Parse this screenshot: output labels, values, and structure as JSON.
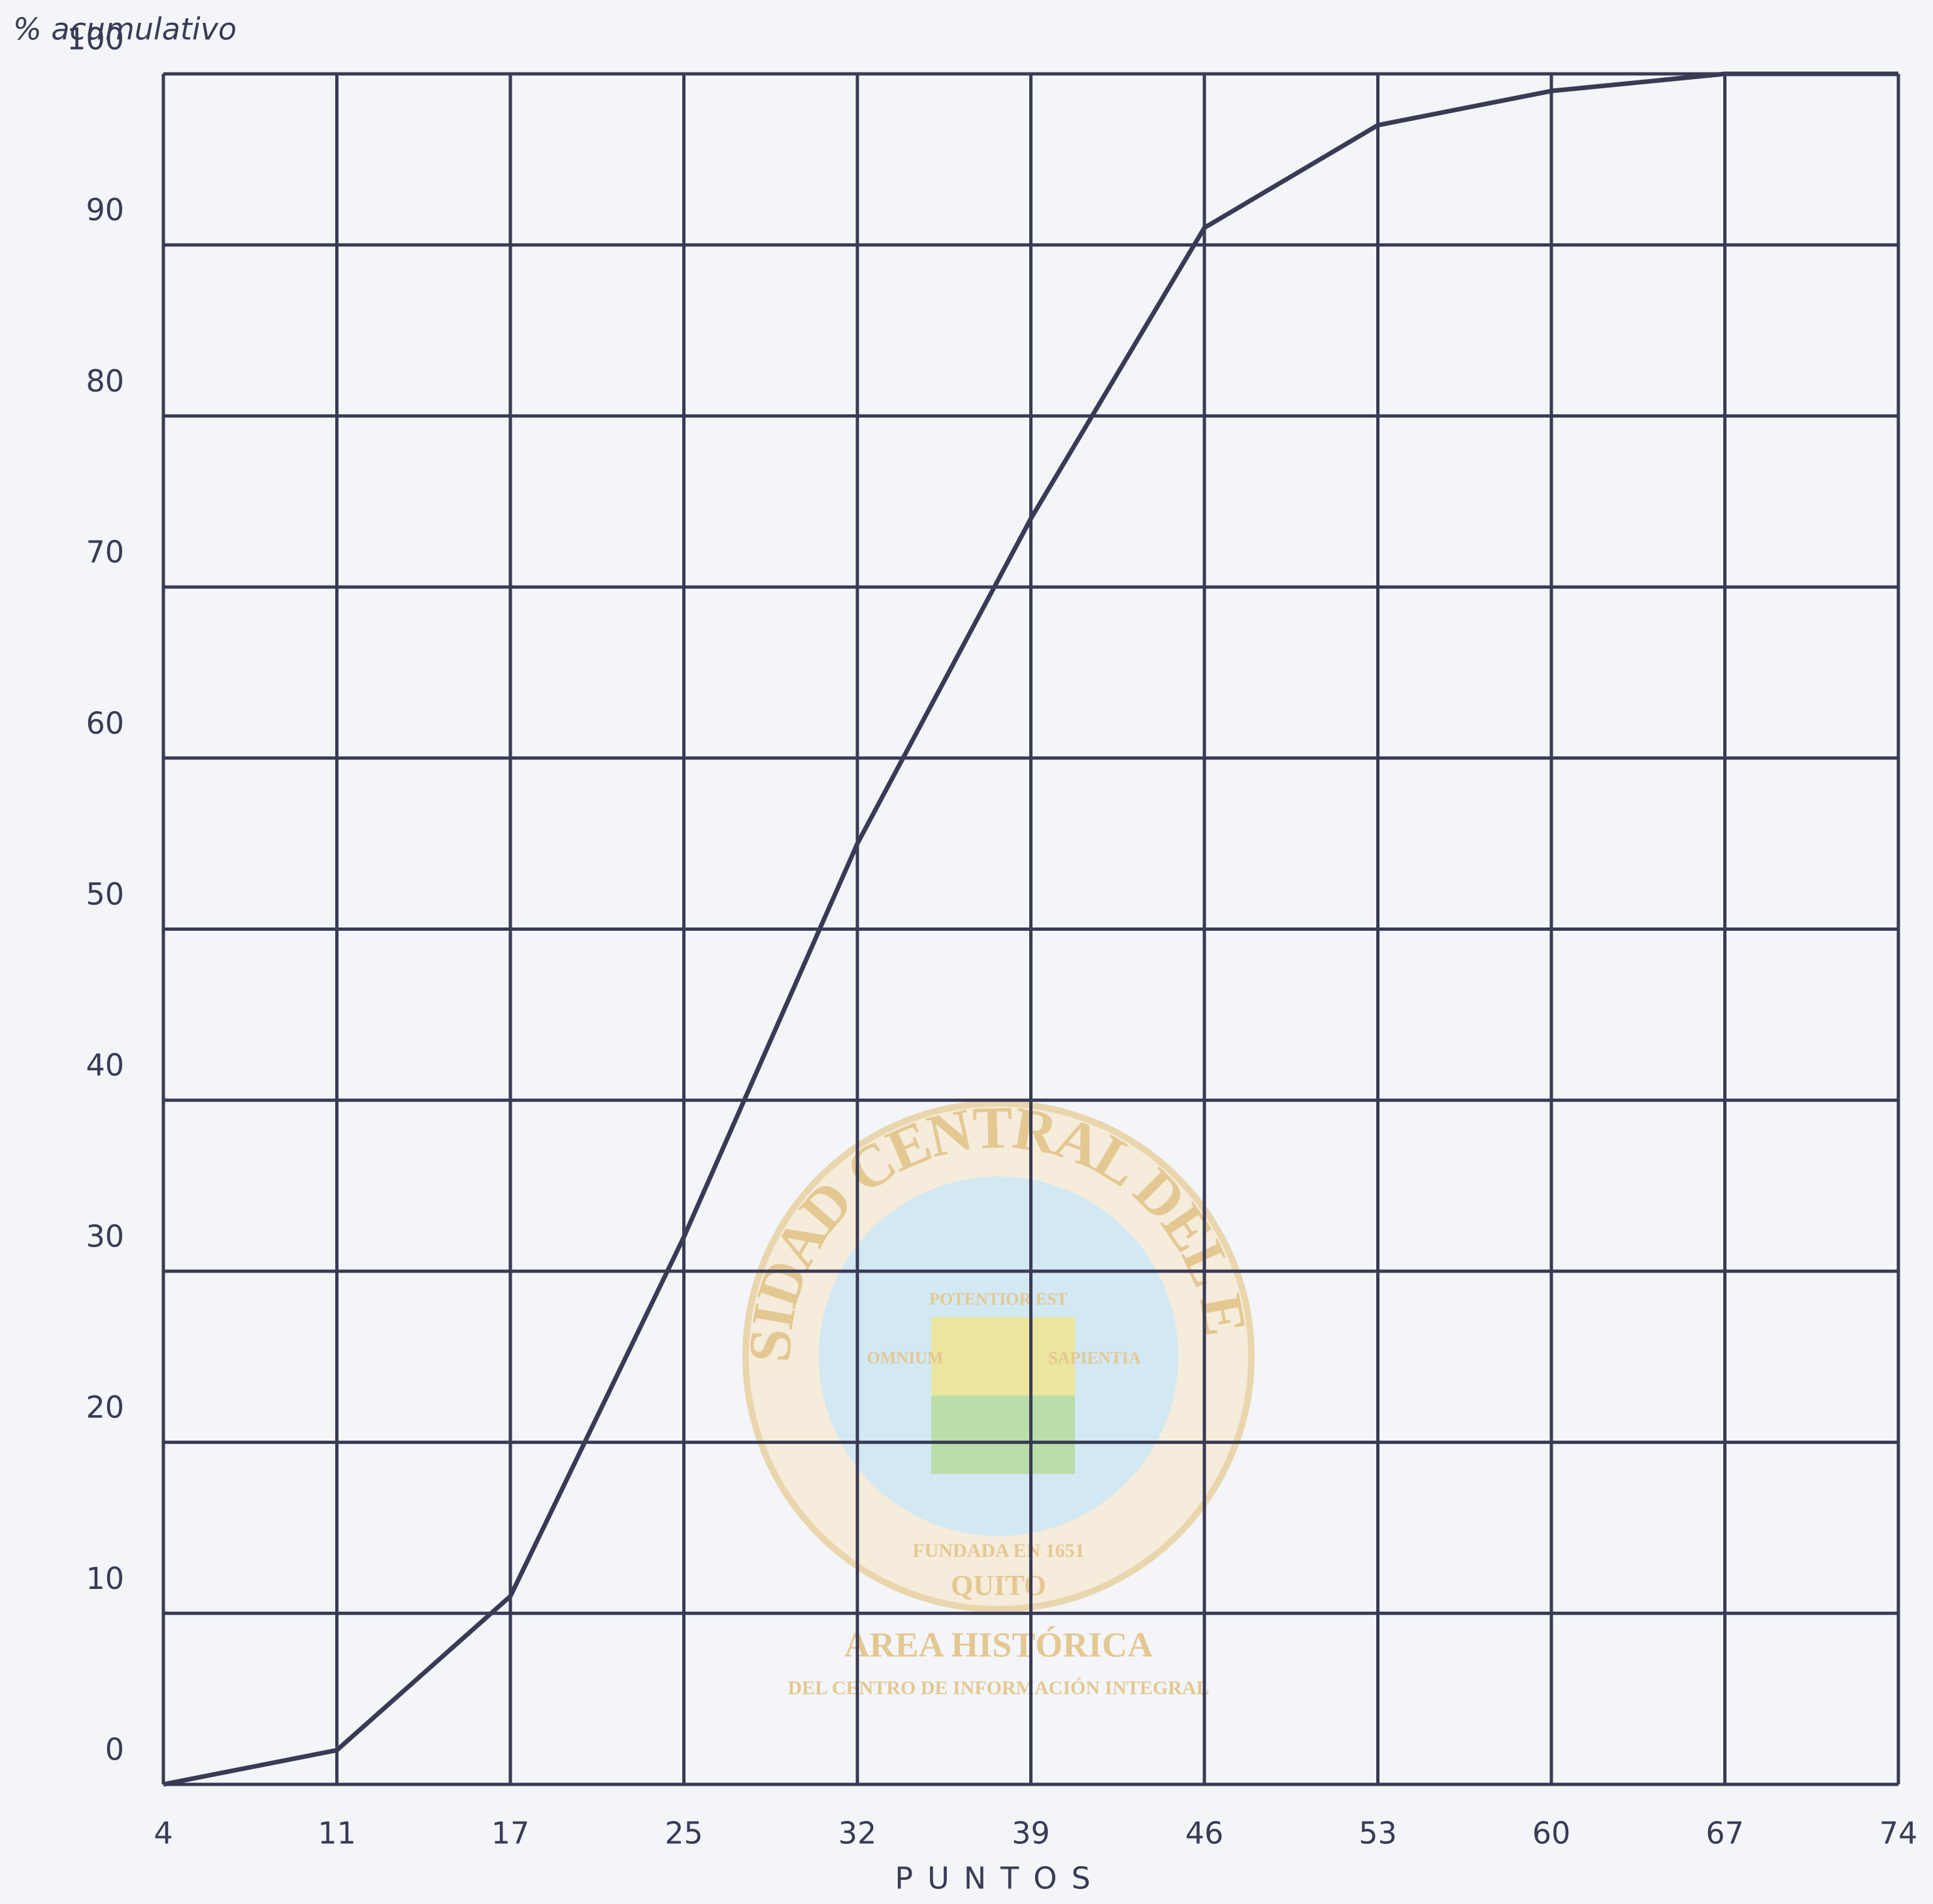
{
  "chart_data": {
    "type": "line",
    "y_label": "% acumulativo",
    "x_label": "PUNTOS",
    "categories": [
      "4",
      "11",
      "17",
      "25",
      "32",
      "39",
      "46",
      "53",
      "60",
      "67",
      "74"
    ],
    "values": [
      0,
      2,
      11,
      32,
      55,
      74,
      91,
      97,
      99,
      100,
      100
    ],
    "color": "#3a3a55",
    "ylim": [
      0,
      100
    ],
    "yticks": [
      0,
      10,
      20,
      30,
      40,
      50,
      60,
      70,
      80,
      90,
      100
    ],
    "grid": true
  },
  "watermark": {
    "ring": "UNIVERSIDAD CENTRAL DEL ECUADOR",
    "motto": "POTENTIOR EST",
    "left": "OMNIUM",
    "right": "SAPIENTIA",
    "founded": "FUNDADA EN 1651",
    "city": "QUITO",
    "area": "AREA HISTÓRICA",
    "center": "DEL CENTRO DE INFORMACIÓN INTEGRAL"
  }
}
